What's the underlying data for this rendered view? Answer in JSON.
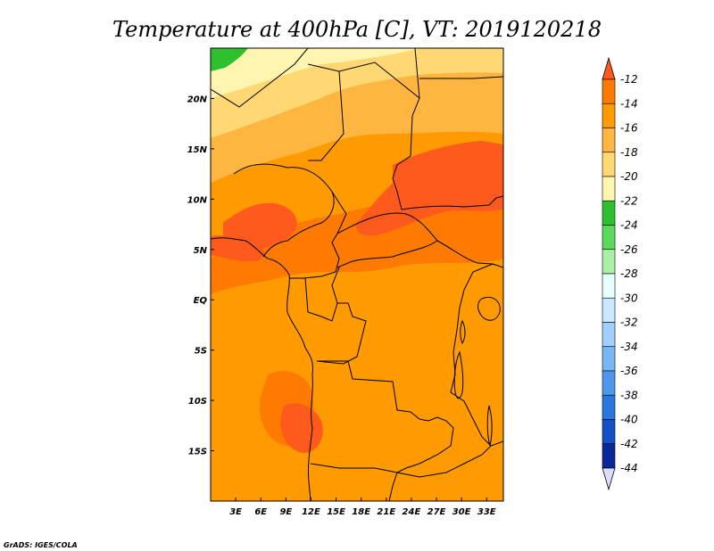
{
  "title": "Temperature at 400hPa [C], VT: 2019120218",
  "credit": "GrADS: IGES/COLA",
  "map": {
    "lon_range": [
      0,
      35
    ],
    "lat_range": [
      -20,
      25
    ],
    "lon_ticks": [
      {
        "value": 3,
        "label": "3E"
      },
      {
        "value": 6,
        "label": "6E"
      },
      {
        "value": 9,
        "label": "9E"
      },
      {
        "value": 12,
        "label": "12E"
      },
      {
        "value": 15,
        "label": "15E"
      },
      {
        "value": 18,
        "label": "18E"
      },
      {
        "value": 21,
        "label": "21E"
      },
      {
        "value": 24,
        "label": "24E"
      },
      {
        "value": 27,
        "label": "27E"
      },
      {
        "value": 30,
        "label": "30E"
      },
      {
        "value": 33,
        "label": "33E"
      }
    ],
    "lat_ticks": [
      {
        "value": 20,
        "label": "20N"
      },
      {
        "value": 15,
        "label": "15N"
      },
      {
        "value": 10,
        "label": "10N"
      },
      {
        "value": 5,
        "label": "5N"
      },
      {
        "value": 0,
        "label": "EQ"
      },
      {
        "value": -5,
        "label": "5S"
      },
      {
        "value": -10,
        "label": "10S"
      },
      {
        "value": -15,
        "label": "15S"
      }
    ]
  },
  "colorbar": {
    "labels": [
      "-12",
      "-14",
      "-16",
      "-18",
      "-20",
      "-22",
      "-24",
      "-26",
      "-28",
      "-30",
      "-32",
      "-34",
      "-36",
      "-38",
      "-40",
      "-42",
      "-44"
    ],
    "colors": [
      "#ff5a1e",
      "#ff7a00",
      "#ff9a00",
      "#ffb640",
      "#ffd873",
      "#fff5b0",
      "#2fc02f",
      "#5ad95a",
      "#a8f0a8",
      "#e6ffff",
      "#c8e8ff",
      "#a0d0ff",
      "#78b6f5",
      "#4e98eb",
      "#2878e0",
      "#1450c8",
      "#0a2896",
      "#0a0a60"
    ],
    "top_color": "#ff5a1e",
    "bottom_color": "#dcdcff"
  },
  "field_colors": {
    "t_22": "#fff5b0",
    "t_20": "#ffd873",
    "t_18": "#ffb640",
    "t_16": "#ff9a00",
    "t_14": "#ff7a00",
    "t_12": "#ff5a1e",
    "t_24": "#2fc02f"
  }
}
